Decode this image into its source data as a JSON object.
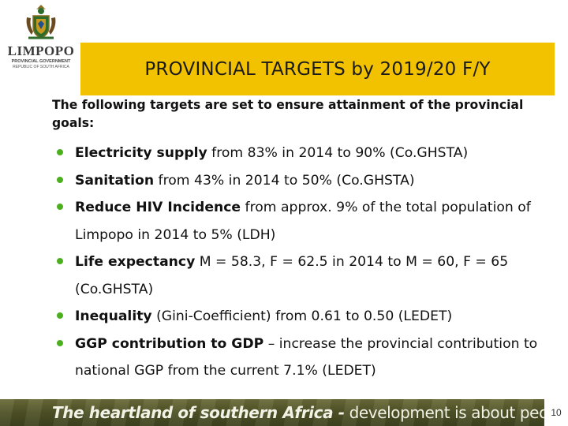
{
  "logo": {
    "icon": "coat-of-arms-icon",
    "name": "LIMPOPO",
    "subtitle": "PROVINCIAL GOVERNMENT",
    "subtitle2": "REPUBLIC OF SOUTH AFRICA"
  },
  "title": "PROVINCIAL TARGETS by 2019/20 F/Y",
  "intro": "The following targets are set to ensure attainment of the provincial goals:",
  "targets": [
    {
      "label": "Electricity supply",
      "text": " from 83% in 2014 to 90% (Co.GHSTA)"
    },
    {
      "label": "Sanitation",
      "text": " from 43% in 2014 to 50% (Co.GHSTA)"
    },
    {
      "label": "Reduce HIV Incidence",
      "text": " from approx. 9% of the total population of Limpopo in 2014 to 5% (LDH)"
    },
    {
      "label": "Life expectancy",
      "text": " M = 58.3, F = 62.5 in 2014 to M = 60, F = 65 (Co.GHSTA)"
    },
    {
      "label": "Inequality",
      "text": " (Gini-Coefficient) from 0.61 to 0.50 (LEDET)"
    },
    {
      "label": "GGP contribution to GDP",
      "text": " – increase the provincial contribution to national GGP from the current 7.1% (LEDET)"
    }
  ],
  "footer": {
    "slogan_lead": "The heartland of southern Africa -",
    "slogan_tail": " development is about people",
    "page_number": "10"
  },
  "colors": {
    "title_bar": "#f2c200",
    "bullet": "#4caf1e",
    "footer": "#4f5226"
  }
}
